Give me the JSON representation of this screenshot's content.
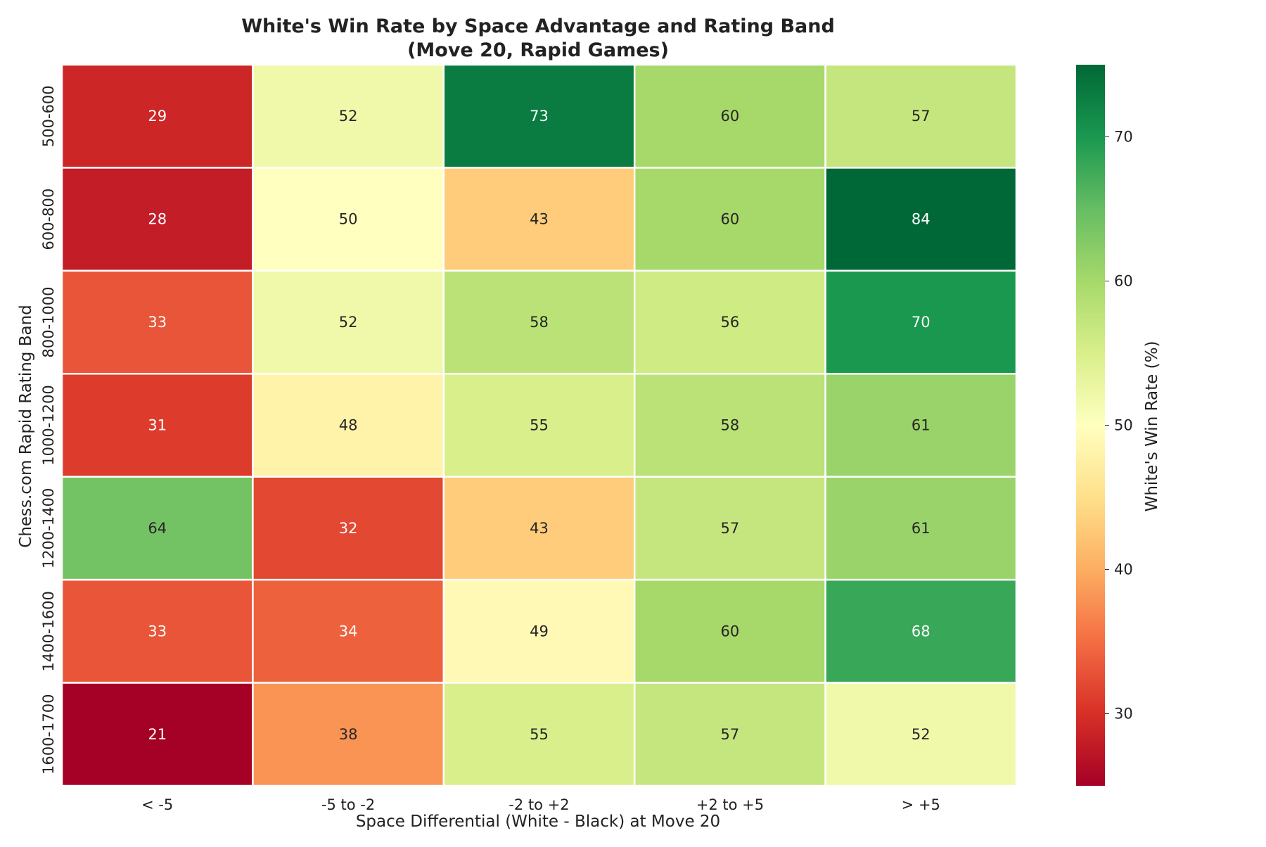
{
  "chart_data": {
    "type": "heatmap",
    "title": [
      "White's Win Rate by Space Advantage and Rating Band",
      "(Move 20, Rapid Games)"
    ],
    "xlabel": "Space Differential (White - Black) at Move 20",
    "ylabel": "Chess.com Rapid Rating Band",
    "x_categories": [
      "< -5",
      "-5 to -2",
      "-2 to +2",
      "+2 to +5",
      "> +5"
    ],
    "y_categories": [
      "500-600",
      "600-800",
      "800-1000",
      "1000-1200",
      "1200-1400",
      "1400-1600",
      "1600-1700"
    ],
    "values": [
      [
        29,
        52,
        73,
        60,
        57
      ],
      [
        28,
        50,
        43,
        60,
        84
      ],
      [
        33,
        52,
        58,
        56,
        70
      ],
      [
        31,
        48,
        55,
        58,
        61
      ],
      [
        64,
        32,
        43,
        57,
        61
      ],
      [
        33,
        34,
        49,
        60,
        68
      ],
      [
        21,
        38,
        55,
        57,
        52
      ]
    ],
    "colormap": "RdYlGn",
    "color_range": [
      25,
      75
    ],
    "colorbar": {
      "label": "White's Win Rate (%)",
      "ticks": [
        30,
        40,
        50,
        60,
        70
      ]
    },
    "annotations": true,
    "grid": false
  }
}
